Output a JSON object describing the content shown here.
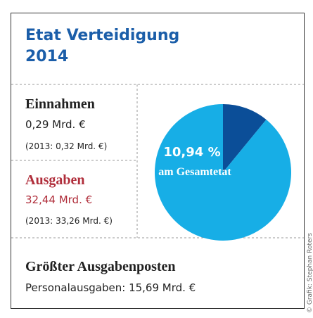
{
  "title": "Etat Verteidigung",
  "year": "2014",
  "income": {
    "heading": "Einnahmen",
    "amount": "0,29 Mrd. €",
    "previous": "(2013: 0,32 Mrd. €)"
  },
  "expenses": {
    "heading": "Ausgaben",
    "amount": "32,44 Mrd. €",
    "previous": "(2013: 33,26 Mrd. €)"
  },
  "largest": {
    "heading": "Größter Ausgabenposten",
    "text": "Personalausgaben: 15,69 Mrd. €"
  },
  "credit": "© Grafik: Stephan Roters",
  "chart_data": {
    "type": "pie",
    "values": [
      10.94,
      89.06
    ],
    "value_labels": [
      "10,94 %",
      null
    ],
    "colors": [
      "#0b4e98",
      "#17aee6"
    ],
    "annotation": "am Gesamtetat"
  }
}
